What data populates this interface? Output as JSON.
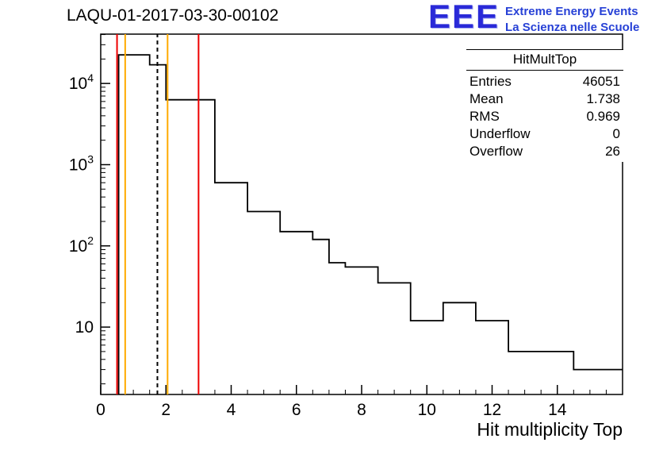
{
  "logo": {
    "letters": "EEE",
    "line1": "Extreme Energy Events",
    "line2": "La Scienza nelle Scuole",
    "color": "#2741d6"
  },
  "stats": {
    "header": "HitMultTop",
    "rows": [
      {
        "label": "Entries",
        "value": "46051"
      },
      {
        "label": "Mean",
        "value": "1.738"
      },
      {
        "label": "RMS",
        "value": "0.969"
      },
      {
        "label": "Underflow",
        "value": "0"
      },
      {
        "label": "Overflow",
        "value": "26"
      }
    ]
  },
  "chart_data": {
    "type": "histogram-step",
    "title": "LAQU-01-2017-03-30-00102",
    "xlabel": "Hit multiplicity Top",
    "ylabel": "",
    "yscale": "log",
    "xlim": [
      0,
      16
    ],
    "ylim": [
      1.48,
      40500
    ],
    "grid": false,
    "legend": false,
    "x_major_ticks": [
      0,
      2,
      4,
      6,
      8,
      10,
      12,
      14
    ],
    "x_minor_step": 0.5,
    "y_decade_exponents": [
      1,
      2,
      3,
      4
    ],
    "line_color": "#000000",
    "steps": [
      [
        0.55,
        1.5,
        22500
      ],
      [
        1.5,
        2.0,
        17000
      ],
      [
        2.0,
        3.5,
        6300
      ],
      [
        3.5,
        4.5,
        600
      ],
      [
        4.5,
        5.5,
        265
      ],
      [
        5.5,
        6.5,
        150
      ],
      [
        6.5,
        7.0,
        120
      ],
      [
        7.0,
        7.5,
        62
      ],
      [
        7.5,
        8.5,
        55
      ],
      [
        8.5,
        9.5,
        35
      ],
      [
        9.5,
        10.5,
        12
      ],
      [
        10.5,
        11.5,
        20
      ],
      [
        11.5,
        12.5,
        12
      ],
      [
        12.5,
        14.5,
        5
      ],
      [
        14.5,
        16.0,
        3
      ]
    ],
    "marker_lines": [
      {
        "x": 0.5,
        "color": "#ee0000",
        "dash": false,
        "name": "red-cut-low"
      },
      {
        "x": 0.75,
        "color": "#ffaa00",
        "dash": false,
        "name": "orange-marker-low"
      },
      {
        "x": 1.738,
        "color": "#000000",
        "dash": true,
        "name": "mean-dashed-line"
      },
      {
        "x": 2.05,
        "color": "#ffaa00",
        "dash": false,
        "name": "orange-marker-high"
      },
      {
        "x": 3.0,
        "color": "#ee0000",
        "dash": false,
        "name": "red-cut-high"
      }
    ]
  }
}
